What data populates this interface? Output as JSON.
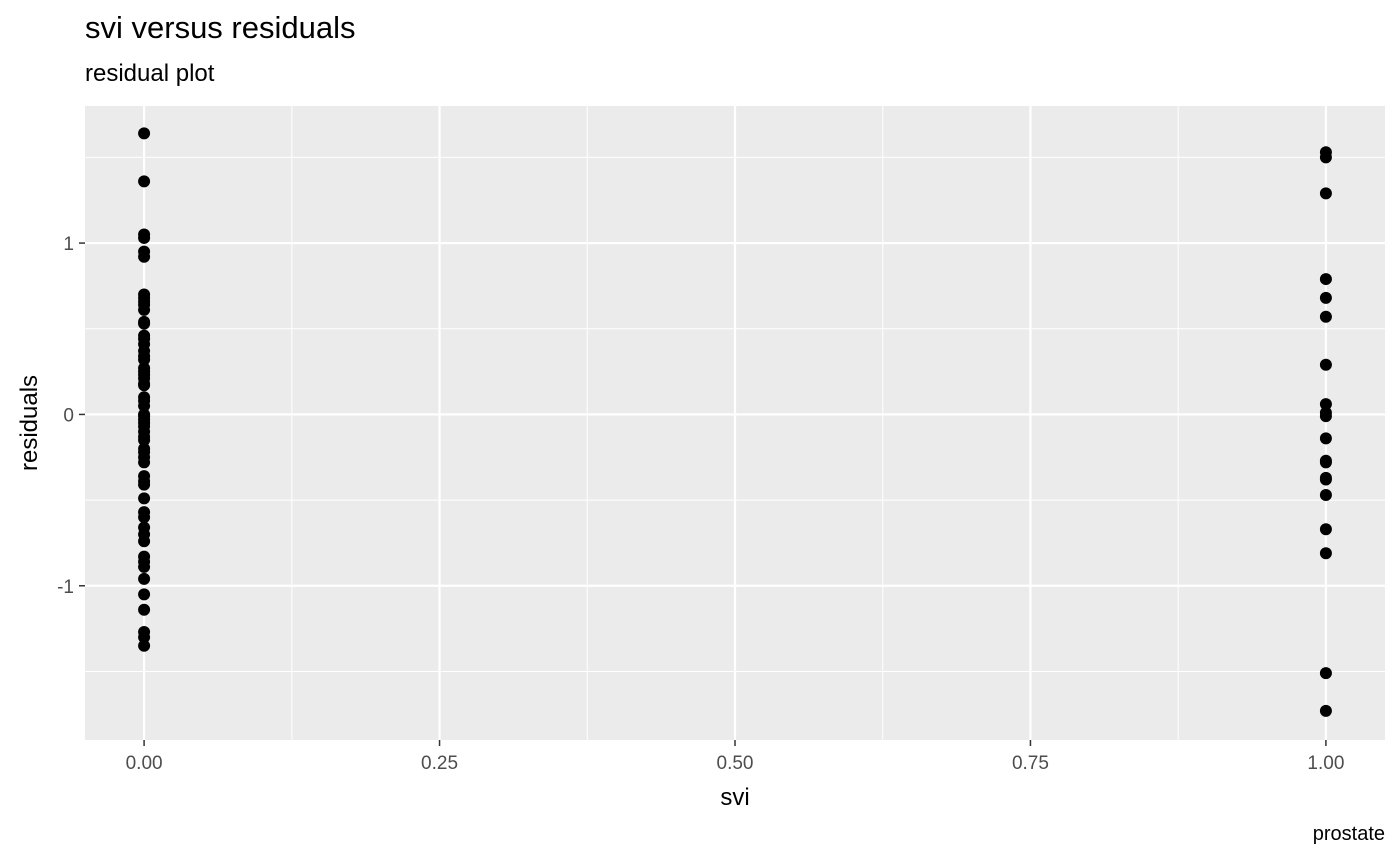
{
  "chart_data": {
    "type": "scatter",
    "title": "svi versus residuals",
    "subtitle": "residual plot",
    "caption": "prostate",
    "xlabel": "svi",
    "ylabel": "residuals",
    "xlim": [
      -0.05,
      1.05
    ],
    "ylim": [
      -1.9,
      1.8
    ],
    "xticks": [
      0,
      0.25,
      0.5,
      0.75,
      1
    ],
    "xtick_labels": [
      "0.00",
      "0.25",
      "0.50",
      "0.75",
      "1.00"
    ],
    "yticks": [
      -1,
      0,
      1
    ],
    "ytick_labels": [
      "-1",
      "0",
      "1"
    ],
    "grid": true,
    "point_color": "#000000",
    "panel_color": "#ebebeb",
    "points": [
      [
        0,
        1.64
      ],
      [
        0,
        1.36
      ],
      [
        0,
        1.05
      ],
      [
        0,
        1.03
      ],
      [
        0,
        0.95
      ],
      [
        0,
        0.92
      ],
      [
        0,
        0.7
      ],
      [
        0,
        0.68
      ],
      [
        0,
        0.66
      ],
      [
        0,
        0.64
      ],
      [
        0,
        0.61
      ],
      [
        0,
        0.54
      ],
      [
        0,
        0.53
      ],
      [
        0,
        0.46
      ],
      [
        0,
        0.44
      ],
      [
        0,
        0.41
      ],
      [
        0,
        0.37
      ],
      [
        0,
        0.34
      ],
      [
        0,
        0.32
      ],
      [
        0,
        0.27
      ],
      [
        0,
        0.25
      ],
      [
        0,
        0.23
      ],
      [
        0,
        0.21
      ],
      [
        0,
        0.18
      ],
      [
        0,
        0.17
      ],
      [
        0,
        0.1
      ],
      [
        0,
        0.08
      ],
      [
        0,
        0.05
      ],
      [
        0,
        0.0
      ],
      [
        0,
        -0.01
      ],
      [
        0,
        -0.03
      ],
      [
        0,
        -0.05
      ],
      [
        0,
        -0.07
      ],
      [
        0,
        -0.1
      ],
      [
        0,
        -0.13
      ],
      [
        0,
        -0.15
      ],
      [
        0,
        -0.2
      ],
      [
        0,
        -0.22
      ],
      [
        0,
        -0.25
      ],
      [
        0,
        -0.28
      ],
      [
        0,
        -0.36
      ],
      [
        0,
        -0.39
      ],
      [
        0,
        -0.41
      ],
      [
        0,
        -0.49
      ],
      [
        0,
        -0.57
      ],
      [
        0,
        -0.6
      ],
      [
        0,
        -0.66
      ],
      [
        0,
        -0.7
      ],
      [
        0,
        -0.74
      ],
      [
        0,
        -0.83
      ],
      [
        0,
        -0.86
      ],
      [
        0,
        -0.89
      ],
      [
        0,
        -0.96
      ],
      [
        0,
        -1.05
      ],
      [
        0,
        -1.14
      ],
      [
        0,
        -1.27
      ],
      [
        0,
        -1.3
      ],
      [
        0,
        -1.35
      ],
      [
        1,
        1.53
      ],
      [
        1,
        1.5
      ],
      [
        1,
        1.29
      ],
      [
        1,
        0.79
      ],
      [
        1,
        0.68
      ],
      [
        1,
        0.57
      ],
      [
        1,
        0.29
      ],
      [
        1,
        0.06
      ],
      [
        1,
        0.01
      ],
      [
        1,
        -0.01
      ],
      [
        1,
        -0.14
      ],
      [
        1,
        -0.27
      ],
      [
        1,
        -0.28
      ],
      [
        1,
        -0.37
      ],
      [
        1,
        -0.38
      ],
      [
        1,
        -0.47
      ],
      [
        1,
        -0.67
      ],
      [
        1,
        -0.81
      ],
      [
        1,
        -1.51
      ],
      [
        1,
        -1.73
      ]
    ]
  }
}
